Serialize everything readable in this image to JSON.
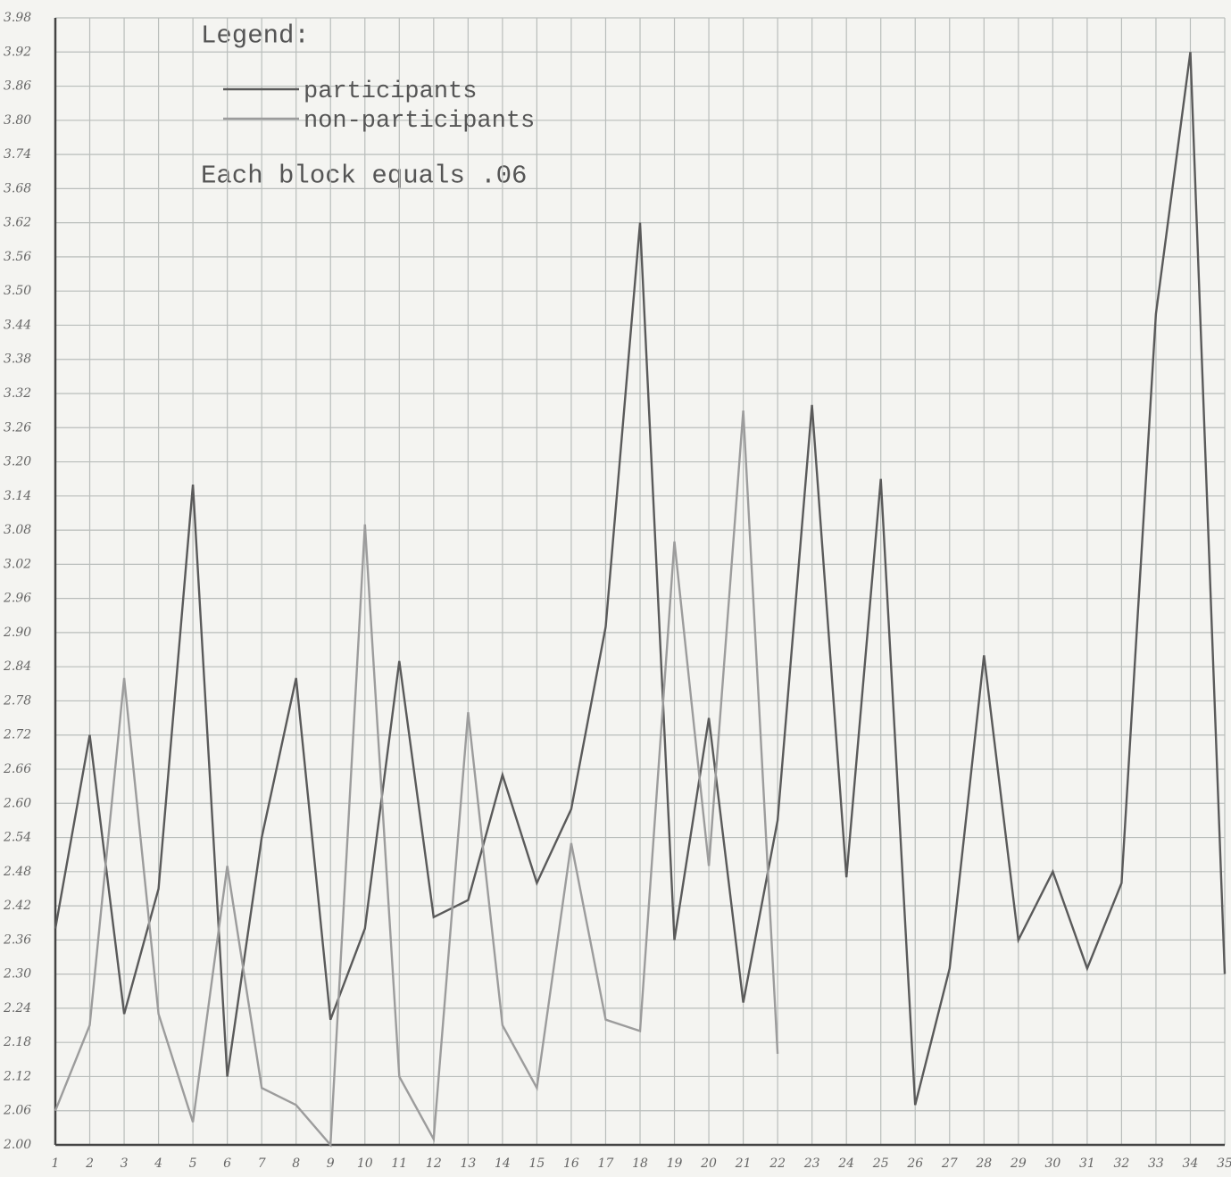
{
  "chart_data": {
    "type": "line",
    "legend_title": "Legend:",
    "note": "Each block equals .06",
    "x": [
      1,
      2,
      3,
      4,
      5,
      6,
      7,
      8,
      9,
      10,
      11,
      12,
      13,
      14,
      15,
      16,
      17,
      18,
      19,
      20,
      21,
      22,
      23,
      24,
      25,
      26,
      27,
      28,
      29,
      30,
      31,
      32,
      33,
      34,
      35
    ],
    "series": [
      {
        "name": "participants",
        "color": "#5a5a5a",
        "values": [
          2.38,
          2.72,
          2.23,
          2.45,
          3.16,
          2.12,
          2.54,
          2.82,
          2.22,
          2.38,
          2.85,
          2.4,
          2.43,
          2.65,
          2.46,
          2.59,
          2.91,
          3.62,
          2.36,
          2.75,
          2.25,
          2.57,
          3.3,
          2.47,
          3.17,
          2.07,
          2.31,
          2.86,
          2.36,
          2.48,
          2.31,
          2.46,
          3.46,
          3.92,
          2.3
        ]
      },
      {
        "name": "non-participants",
        "color": "#9c9c9c",
        "values": [
          2.06,
          2.21,
          2.82,
          2.23,
          2.04,
          2.49,
          2.1,
          2.07,
          2.0,
          3.09,
          2.12,
          2.01,
          2.76,
          2.21,
          2.1,
          2.53,
          2.22,
          2.2,
          3.06,
          2.49,
          3.29,
          2.16,
          null,
          null,
          null,
          null,
          null,
          null,
          null,
          null,
          null,
          null,
          null,
          null,
          null
        ]
      }
    ],
    "xlim": [
      1,
      35
    ],
    "xticks": [
      1,
      2,
      3,
      4,
      5,
      6,
      7,
      8,
      9,
      10,
      11,
      12,
      13,
      14,
      15,
      16,
      17,
      18,
      19,
      20,
      21,
      22,
      23,
      24,
      25,
      26,
      27,
      28,
      29,
      30,
      31,
      32,
      33,
      34,
      35
    ],
    "ylim": [
      2.0,
      3.98
    ],
    "yticks": [
      {
        "value": 2.0,
        "label": "2.00"
      },
      2.06,
      2.12,
      2.18,
      2.24,
      {
        "value": 2.3,
        "label": "2.30"
      },
      2.36,
      2.42,
      2.48,
      2.54,
      {
        "value": 2.6,
        "label": "2.60"
      },
      2.66,
      2.72,
      2.78,
      2.84,
      {
        "value": 2.9,
        "label": "2.90"
      },
      2.96,
      3.02,
      3.08,
      3.14,
      {
        "value": 3.2,
        "label": "3.20"
      },
      3.26,
      3.32,
      3.38,
      3.44,
      {
        "value": 3.5,
        "label": "3.50"
      },
      3.56,
      3.62,
      3.68,
      3.74,
      {
        "value": 3.8,
        "label": "3.80"
      },
      3.86,
      3.92,
      3.98
    ],
    "grid": true
  }
}
